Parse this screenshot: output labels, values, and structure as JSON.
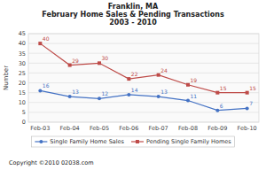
{
  "chart_data": {
    "type": "line",
    "title": [
      "Franklin, MA",
      "February Home Sales & Pending Transactions",
      "2003 - 2010"
    ],
    "y_label": "Number",
    "annotations": [
      "Copyright ©2010 02038.com"
    ],
    "categories": [
      "Feb-03",
      "Feb-04",
      "Feb-05",
      "Feb-06",
      "Feb-07",
      "Feb-08",
      "Feb-09",
      "Feb-10"
    ],
    "series": [
      {
        "name": "Single Family Home Sales",
        "color": "#4472C4",
        "marker": "circle",
        "values": [
          16,
          13,
          12,
          14,
          13,
          11,
          6,
          7
        ]
      },
      {
        "name": "Pending Single Family Homes",
        "color": "#BE4B48",
        "marker": "square",
        "values": [
          40,
          29,
          30,
          22,
          24,
          19,
          15,
          15
        ]
      }
    ],
    "ylim": [
      0,
      45
    ],
    "yticks": [
      0,
      5,
      10,
      15,
      20,
      25,
      30,
      35,
      40,
      45
    ],
    "grid": true,
    "legend": "bottom",
    "data_labels": true
  }
}
